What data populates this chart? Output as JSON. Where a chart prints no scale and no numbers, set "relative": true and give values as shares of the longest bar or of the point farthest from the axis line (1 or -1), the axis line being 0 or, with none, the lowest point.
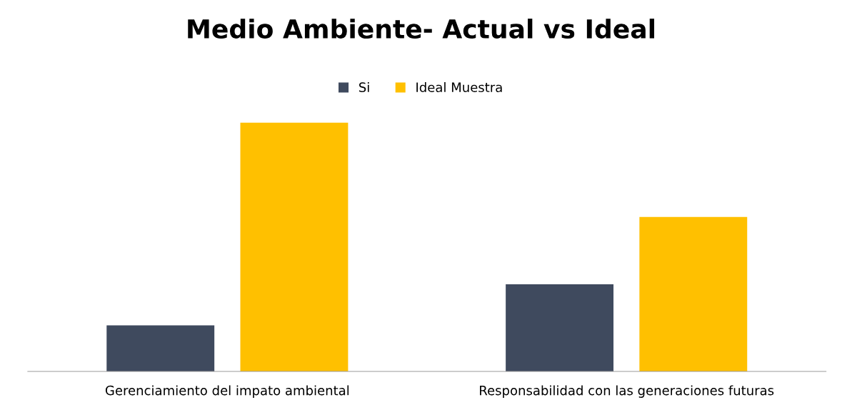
{
  "chart_data": {
    "type": "bar",
    "title": "Medio Ambiente- Actual vs Ideal",
    "categories": [
      "Gerenciamiento del impato ambiental",
      "Responsabilidad con las generaciones futuras"
    ],
    "series": [
      {
        "name": "Si",
        "color": "#3f4a5e",
        "values": [
          0.185,
          0.35
        ]
      },
      {
        "name": "Ideal Muestra",
        "color": "#ffc000",
        "values": [
          1,
          0.62
        ]
      }
    ],
    "relative": true,
    "legend": "top",
    "grid": false
  }
}
